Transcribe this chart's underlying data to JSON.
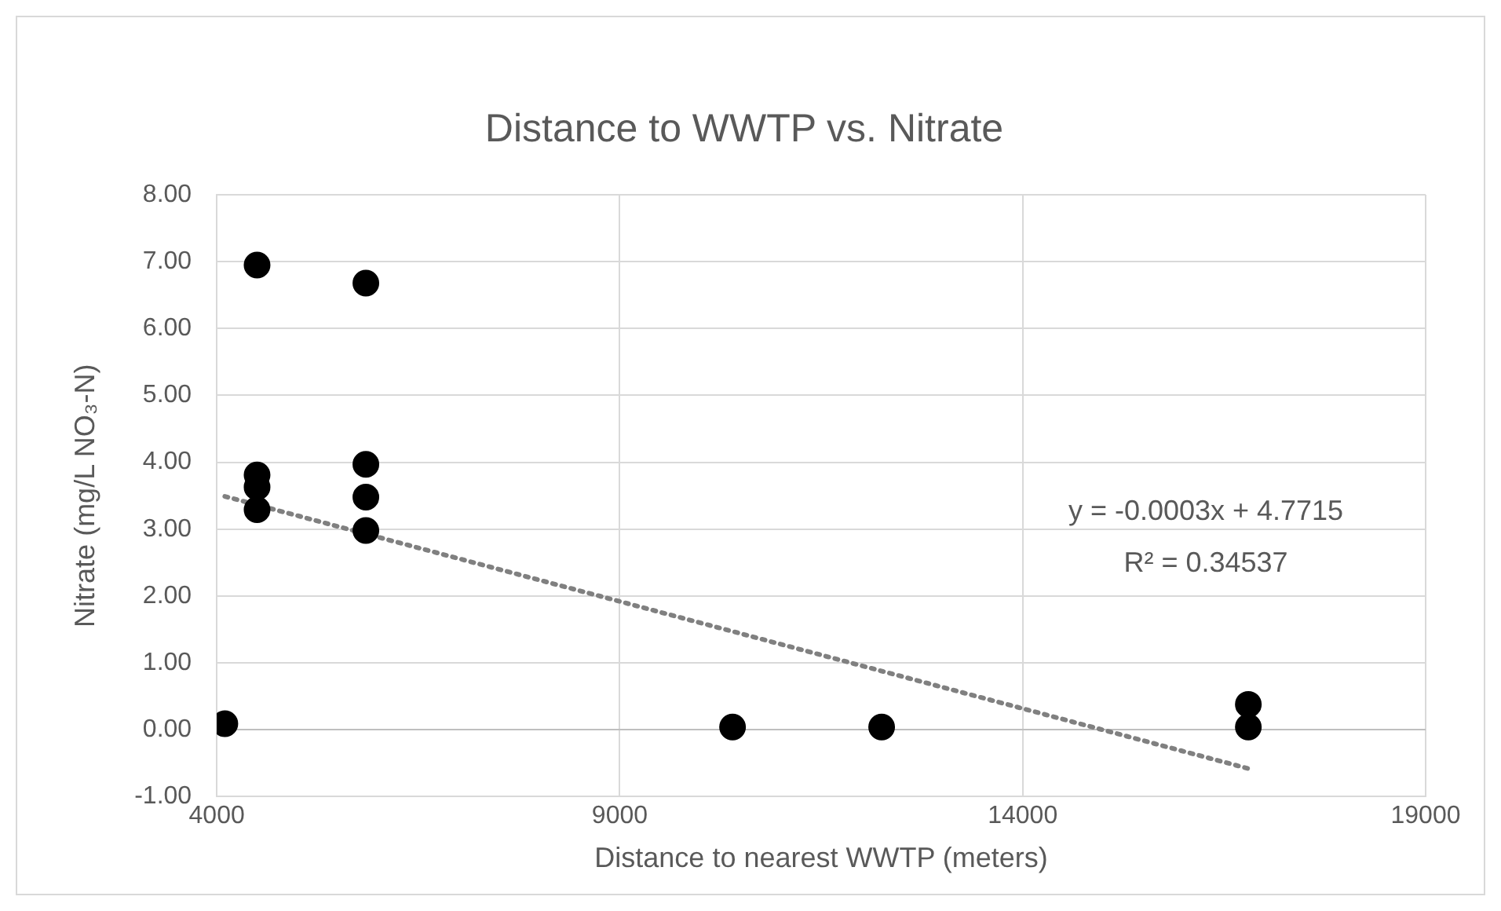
{
  "chart_data": {
    "type": "scatter",
    "title": "Distance to WWTP vs. Nitrate",
    "xlabel": "Distance to nearest WWTP (meters)",
    "ylabel": "Nitrate (mg/L NO₃-N)",
    "annotations": [
      "y = -0.0003x + 4.7715",
      "R² = 0.34537"
    ],
    "series": [
      {
        "type": "scatter",
        "color": "#000000",
        "marker": "circle",
        "x": [
          4500,
          4500,
          4500,
          4500,
          5850,
          5850,
          5850,
          5850,
          4100,
          10400,
          12250,
          16800,
          16800
        ],
        "values": [
          6.95,
          3.81,
          3.63,
          3.29,
          6.68,
          3.97,
          3.48,
          2.98,
          0.09,
          0.04,
          0.04,
          0.38,
          0.04
        ]
      },
      {
        "type": "line",
        "color": "#808080",
        "marker": "none",
        "line_style": "dotted",
        "x": [
          4100,
          16800
        ],
        "values": [
          3.49,
          -0.58
        ]
      }
    ],
    "xlim": [
      4000,
      19000
    ],
    "xticks": [
      4000,
      9000,
      14000,
      19000
    ],
    "ylim": [
      -1,
      8
    ],
    "yticks": [
      {
        "value": -1,
        "label": "-1.00"
      },
      {
        "value": 0,
        "label": "0.00"
      },
      {
        "value": 1,
        "label": "1.00"
      },
      {
        "value": 2,
        "label": "2.00"
      },
      {
        "value": 3,
        "label": "3.00"
      },
      {
        "value": 4,
        "label": "4.00"
      },
      {
        "value": 5,
        "label": "5.00"
      },
      {
        "value": 6,
        "label": "6.00"
      },
      {
        "value": 7,
        "label": "7.00"
      },
      {
        "value": 8,
        "label": "8.00"
      }
    ],
    "grid": true,
    "legend": false
  }
}
